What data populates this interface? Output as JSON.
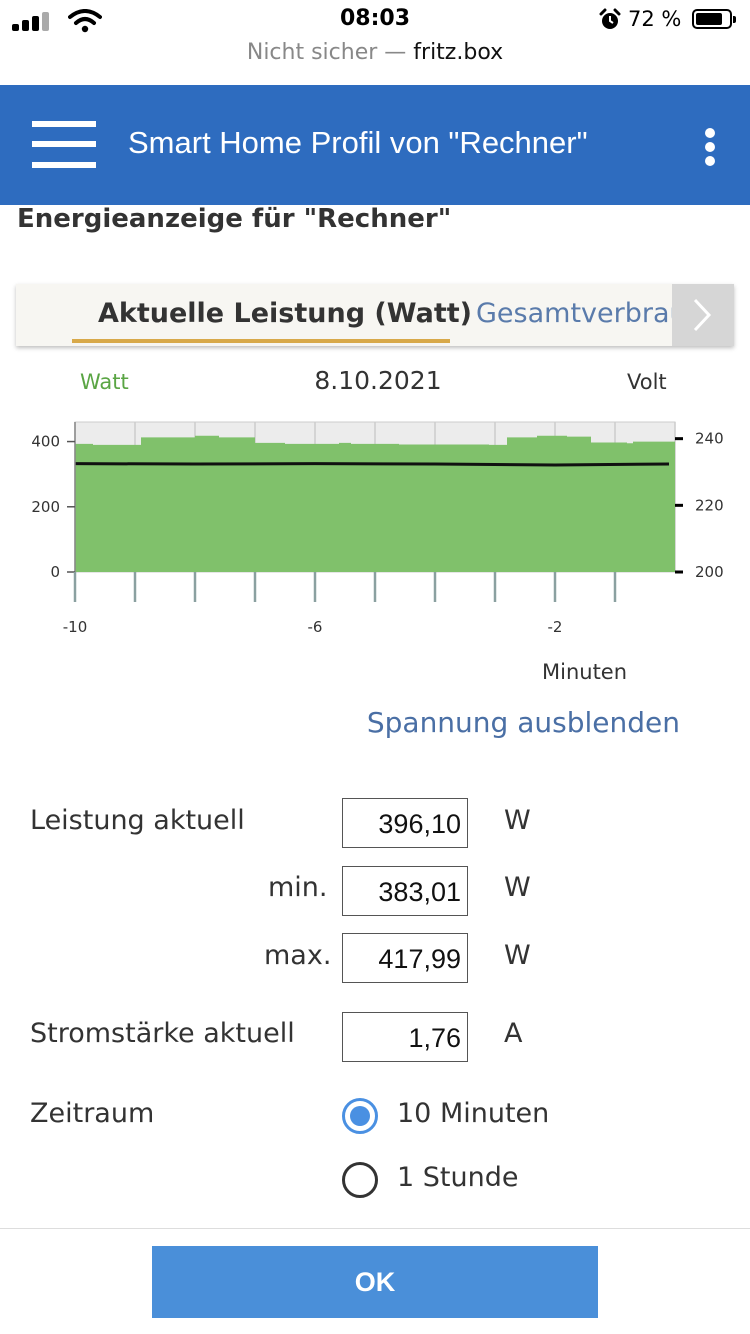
{
  "status_bar": {
    "time": "08:03",
    "battery": "72 %"
  },
  "browser": {
    "insecure_label": "Nicht sicher —",
    "host": "fritz.box"
  },
  "header": {
    "title": "Smart Home Profil von \"Rechner\""
  },
  "page": {
    "heading": "Energieanzeige für \"Rechner\""
  },
  "tabs": [
    {
      "label": "Aktuelle Leistung (Watt)",
      "active": true
    },
    {
      "label": "Gesamtverbrau",
      "active": false
    }
  ],
  "chart": {
    "left_unit": "Watt",
    "right_unit": "Volt",
    "date": "8.10.2021",
    "x_unit": "Minuten",
    "colors": {
      "power_fill": "#80c16b",
      "voltage_line": "#111111",
      "grid": "#cccccc",
      "background": "#ececec"
    }
  },
  "chart_data": {
    "type": "area",
    "title": "8.10.2021",
    "xlabel": "Minuten",
    "ylabel": "Watt",
    "y2label": "Volt",
    "xlim": [
      -10,
      0
    ],
    "ylim": [
      0,
      460
    ],
    "y2lim": [
      200,
      245
    ],
    "x_ticks": [
      -10,
      -6,
      -2
    ],
    "y_ticks": [
      0,
      200,
      400
    ],
    "y2_ticks": [
      200,
      220,
      240
    ],
    "grid": true,
    "series": [
      {
        "name": "Watt",
        "axis": "left",
        "kind": "area",
        "x": [
          -10,
          -9.7,
          -9.0,
          -8.9,
          -8.0,
          -7.6,
          -7.0,
          -6.5,
          -5.6,
          -5.4,
          -4.6,
          -4.2,
          -3.1,
          -2.8,
          -2.3,
          -1.8,
          -1.4,
          -0.8,
          -0.7,
          -0.1
        ],
        "values": [
          393,
          390,
          390,
          413,
          418,
          413,
          396,
          393,
          396,
          393,
          391,
          391,
          390,
          413,
          418,
          415,
          397,
          395,
          400,
          400
        ]
      },
      {
        "name": "Volt",
        "axis": "right",
        "kind": "line",
        "x": [
          -10,
          -8,
          -6,
          -4,
          -2,
          -0.1
        ],
        "values": [
          232.5,
          232.4,
          232.5,
          232.4,
          232.1,
          232.4
        ]
      }
    ]
  },
  "voltage_toggle": "Spannung ausblenden",
  "measurements": {
    "power_label": "Leistung aktuell",
    "power_value": "396,10",
    "power_unit": "W",
    "min_label": "min.",
    "min_value": "383,01",
    "min_unit": "W",
    "max_label": "max.",
    "max_value": "417,99",
    "max_unit": "W",
    "current_label": "Stromstärke aktuell",
    "current_value": "1,76",
    "current_unit": "A"
  },
  "timeframe": {
    "label": "Zeitraum",
    "options": [
      {
        "label": "10 Minuten",
        "selected": true
      },
      {
        "label": "1 Stunde",
        "selected": false
      }
    ]
  },
  "ok_button": "OK"
}
